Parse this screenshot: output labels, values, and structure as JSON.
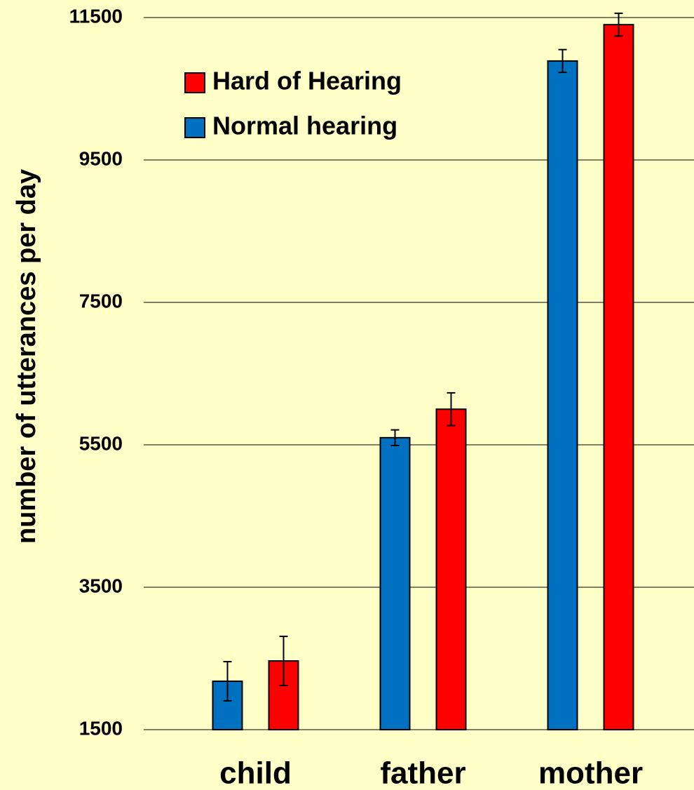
{
  "chart_data": {
    "type": "bar",
    "y_label": "number of utterances per day",
    "categories": [
      "child",
      "father",
      "mother"
    ],
    "series": [
      {
        "name": "Normal hearing",
        "color": "#0070c0",
        "values": [
          2180,
          5600,
          10890
        ],
        "errors": [
          275,
          110,
          160
        ]
      },
      {
        "name": "Hard of Hearing",
        "color": "#ff0000",
        "values": [
          2465,
          6000,
          11400
        ],
        "errors": [
          345,
          230,
          160
        ]
      }
    ],
    "ylim": [
      1500,
      11500
    ],
    "yticks": [
      1500,
      3500,
      5500,
      7500,
      9500,
      11500
    ],
    "grid": true
  }
}
